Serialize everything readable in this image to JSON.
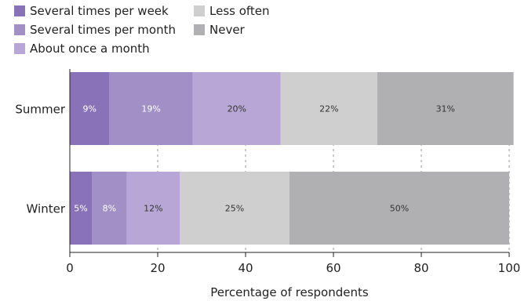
{
  "chart_data": {
    "type": "bar",
    "orientation": "horizontal",
    "stacked": true,
    "categories": [
      "Summer",
      "Winter"
    ],
    "series": [
      {
        "name": "Several times per week",
        "color": "#8a72b8",
        "values": [
          9,
          5
        ]
      },
      {
        "name": "Several times per month",
        "color": "#a18fc6",
        "values": [
          19,
          8
        ]
      },
      {
        "name": "About once a month",
        "color": "#b8a7d6",
        "values": [
          20,
          12
        ]
      },
      {
        "name": "Less often",
        "color": "#cfcfd0",
        "values": [
          22,
          25
        ]
      },
      {
        "name": "Never",
        "color": "#b0b0b2",
        "values": [
          31,
          50
        ]
      }
    ],
    "data_labels": [
      [
        "9%",
        "19%",
        "20%",
        "22%",
        "31%"
      ],
      [
        "5%",
        "8%",
        "12%",
        "25%",
        "50%"
      ]
    ],
    "xlabel": "Percentage of respondents",
    "ylabel": "",
    "xlim": [
      0,
      100
    ],
    "xticks": [
      "0",
      "20",
      "40",
      "60",
      "80",
      "100"
    ],
    "grid": "vertical dashed",
    "legend_position": "top-left"
  }
}
